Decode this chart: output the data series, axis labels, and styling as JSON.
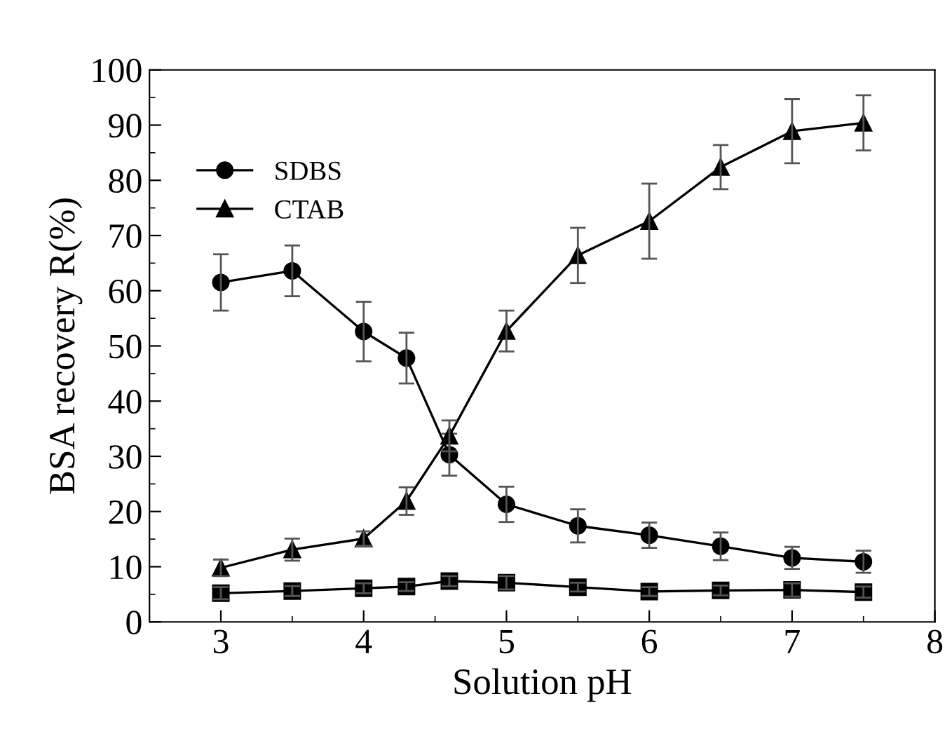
{
  "chart_data": {
    "type": "line",
    "xlabel": "Solution pH",
    "ylabel": "BSA recovery R(%)",
    "x": [
      3,
      3.5,
      4,
      4.3,
      4.6,
      5,
      5.5,
      6,
      6.5,
      7,
      7.5
    ],
    "xlim": [
      2.5,
      8
    ],
    "xticks": [
      3,
      4,
      5,
      6,
      7,
      8
    ],
    "ylim": [
      0,
      100
    ],
    "yticks": [
      0,
      10,
      20,
      30,
      40,
      50,
      60,
      70,
      80,
      90,
      100
    ],
    "grid": false,
    "legend": "top left",
    "line_style": "solid",
    "series": [
      {
        "color": "#000000",
        "marker": "square",
        "values": [
          5.2,
          5.6,
          6.1,
          6.4,
          7.4,
          7.1,
          6.3,
          5.5,
          5.7,
          5.8,
          5.4
        ],
        "errors": [
          1.1,
          0.9,
          0.9,
          0.8,
          0.9,
          1.2,
          0.8,
          0.8,
          0.9,
          1.2,
          1.0
        ]
      },
      {
        "name": "SDBS",
        "color": "#000000",
        "marker": "circle",
        "values": [
          61.5,
          63.6,
          52.6,
          47.8,
          30.3,
          21.3,
          17.4,
          15.7,
          13.7,
          11.6,
          10.9
        ],
        "errors": [
          5.1,
          4.6,
          5.4,
          4.6,
          3.8,
          3.2,
          3.0,
          2.3,
          2.5,
          2.0,
          2.0
        ]
      },
      {
        "name": "CTAB",
        "color": "#000000",
        "marker": "triangle",
        "values": [
          9.8,
          13.1,
          15.1,
          21.9,
          33.7,
          52.7,
          66.4,
          72.6,
          82.4,
          88.9,
          90.4
        ],
        "errors": [
          1.5,
          2.0,
          1.3,
          2.5,
          2.8,
          3.7,
          5.0,
          6.8,
          4.0,
          5.8,
          5.0
        ]
      }
    ]
  }
}
